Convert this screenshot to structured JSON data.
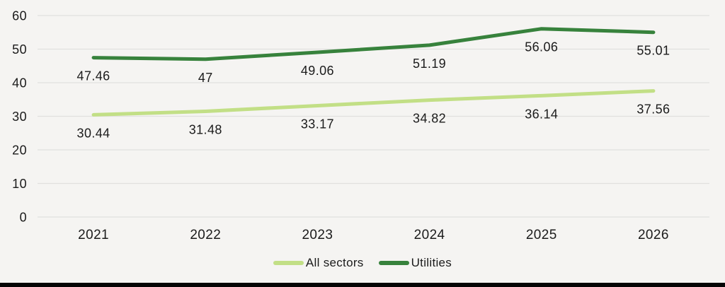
{
  "chart_data": {
    "type": "line",
    "categories": [
      "2021",
      "2022",
      "2023",
      "2024",
      "2025",
      "2026"
    ],
    "series": [
      {
        "name": "All sectors",
        "color": "#c2df86",
        "values": [
          30.44,
          31.48,
          33.17,
          34.82,
          36.14,
          37.56
        ]
      },
      {
        "name": "Utilities",
        "color": "#37823c",
        "values": [
          47.46,
          47,
          49.06,
          51.19,
          56.06,
          55.01
        ]
      }
    ],
    "title": "",
    "xlabel": "",
    "ylabel": "",
    "ylim": [
      0,
      60
    ],
    "yticks": [
      0,
      10,
      20,
      30,
      40,
      50,
      60
    ],
    "grid": true,
    "data_labels": true,
    "legend_position": "bottom-center"
  },
  "colors": {
    "background": "#f5f4f2",
    "gridline": "#e1e0de",
    "text": "#1b1b1b",
    "bottom_bar": "#050505"
  }
}
